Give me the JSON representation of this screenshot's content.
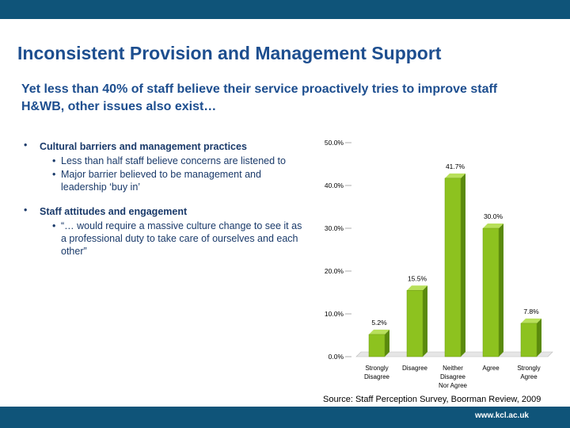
{
  "slide": {
    "title": "Inconsistent Provision and Management Support",
    "subtitle": "Yet less than 40% of staff believe their service proactively tries to improve staff H&WB, other issues also exist…",
    "footer_url": "www.kcl.ac.uk",
    "source": "Source: Staff Perception Survey, Boorman Review, 2009"
  },
  "bullets": [
    {
      "heading": "Cultural barriers and management practices",
      "subitems": [
        "Less than half staff believe concerns are listened to",
        "Major barrier believed to be management and leadership ‘buy in’"
      ]
    },
    {
      "heading": "Staff attitudes and engagement",
      "subitems": [
        "“… would require a massive culture change to see it as a professional duty to take care of ourselves and each other”"
      ]
    }
  ],
  "colors": {
    "bar_brand": "#0f5479",
    "title": "#1d4e8f",
    "bar_fill": "#8dc21f",
    "bar_side": "#5a8a0c"
  },
  "chart_data": {
    "type": "bar",
    "categories": [
      [
        "Strongly",
        "Disagree"
      ],
      [
        "Disagree"
      ],
      [
        "Neither",
        "Disagree",
        "Nor Agree"
      ],
      [
        "Agree"
      ],
      [
        "Strongly",
        "Agree"
      ]
    ],
    "values": [
      5.2,
      15.5,
      41.7,
      30.0,
      7.8
    ],
    "data_labels": [
      "5.2%",
      "15.5%",
      "41.7%",
      "30.0%",
      "7.8%"
    ],
    "y_ticks": [
      "0.0%",
      "10.0%",
      "20.0%",
      "30.0%",
      "40.0%",
      "50.0%"
    ],
    "ylim": [
      0,
      50
    ],
    "grid": false,
    "legend": "none"
  }
}
